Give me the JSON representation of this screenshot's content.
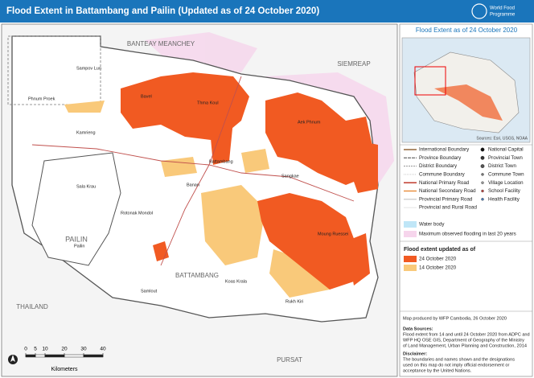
{
  "header": {
    "title": "Flood Extent in Battambang and Pailin (Updated as of 24 October 2020)",
    "logo": [
      "World Food",
      "Programme"
    ]
  },
  "places": [
    "BANTEAY MEANCHEY",
    "SIEMREAP",
    "BATTAMBANG",
    "PAILIN",
    "THAILAND",
    "PURSAT",
    "Battambang",
    "Sangkae",
    "Aek Phnum",
    "Moung Ruessei",
    "Banan",
    "Rotonak Mondol",
    "Sala Krau",
    "Kamrieng",
    "Samlout",
    "Koas Krala",
    "Rukh Kiri",
    "Phnum Proek",
    "Sampov Lun",
    "Thma Koul",
    "Bavel",
    "Pailin"
  ],
  "scale": {
    "ticks": [
      0,
      5,
      10,
      20,
      30,
      40
    ],
    "unit": "Kilometers"
  },
  "inset": {
    "title": "Flood Extent as of 24 October 2020",
    "source": "Sources: Esri, USGS, NOAA"
  },
  "legend": {
    "left": [
      "International Boundary",
      "Province Boundary",
      "District Boundary",
      "Commune Boundary",
      "National Primary Road",
      "National Secondary Road",
      "Provincial Primary Road",
      "Provincial and Rural Road"
    ],
    "right": [
      "National Capital",
      "Provincial Town",
      "District Town",
      "Commune Town",
      "Village Location",
      "School Facility",
      "Health Facility"
    ],
    "areas": [
      "Water body",
      "Maximum observed flooding in last 20 years"
    ],
    "flood_title": "Flood extent updated as of",
    "flood": [
      {
        "label": "24 October 2020",
        "color": "#f15a22"
      },
      {
        "label": "14 October 2020",
        "color": "#f9c97a"
      }
    ]
  },
  "credits": {
    "produced": "Map produced by WFP Cambodia, 26 October 2020",
    "sources_title": "Data Sources:",
    "sources": [
      "Flood extent from 14 and until 24 October 2020 from ADPC and",
      "WFP HQ OSE GIS, Department of Geography of the Ministry",
      "of Land Management, Urban Planning and Construction, 2014"
    ],
    "disclaimer_title": "Disclaimer:",
    "disclaimer": [
      "The boundaries and names shown and the designations",
      "used on this map do not imply official endorsement or",
      "acceptance by the United Nations."
    ]
  }
}
